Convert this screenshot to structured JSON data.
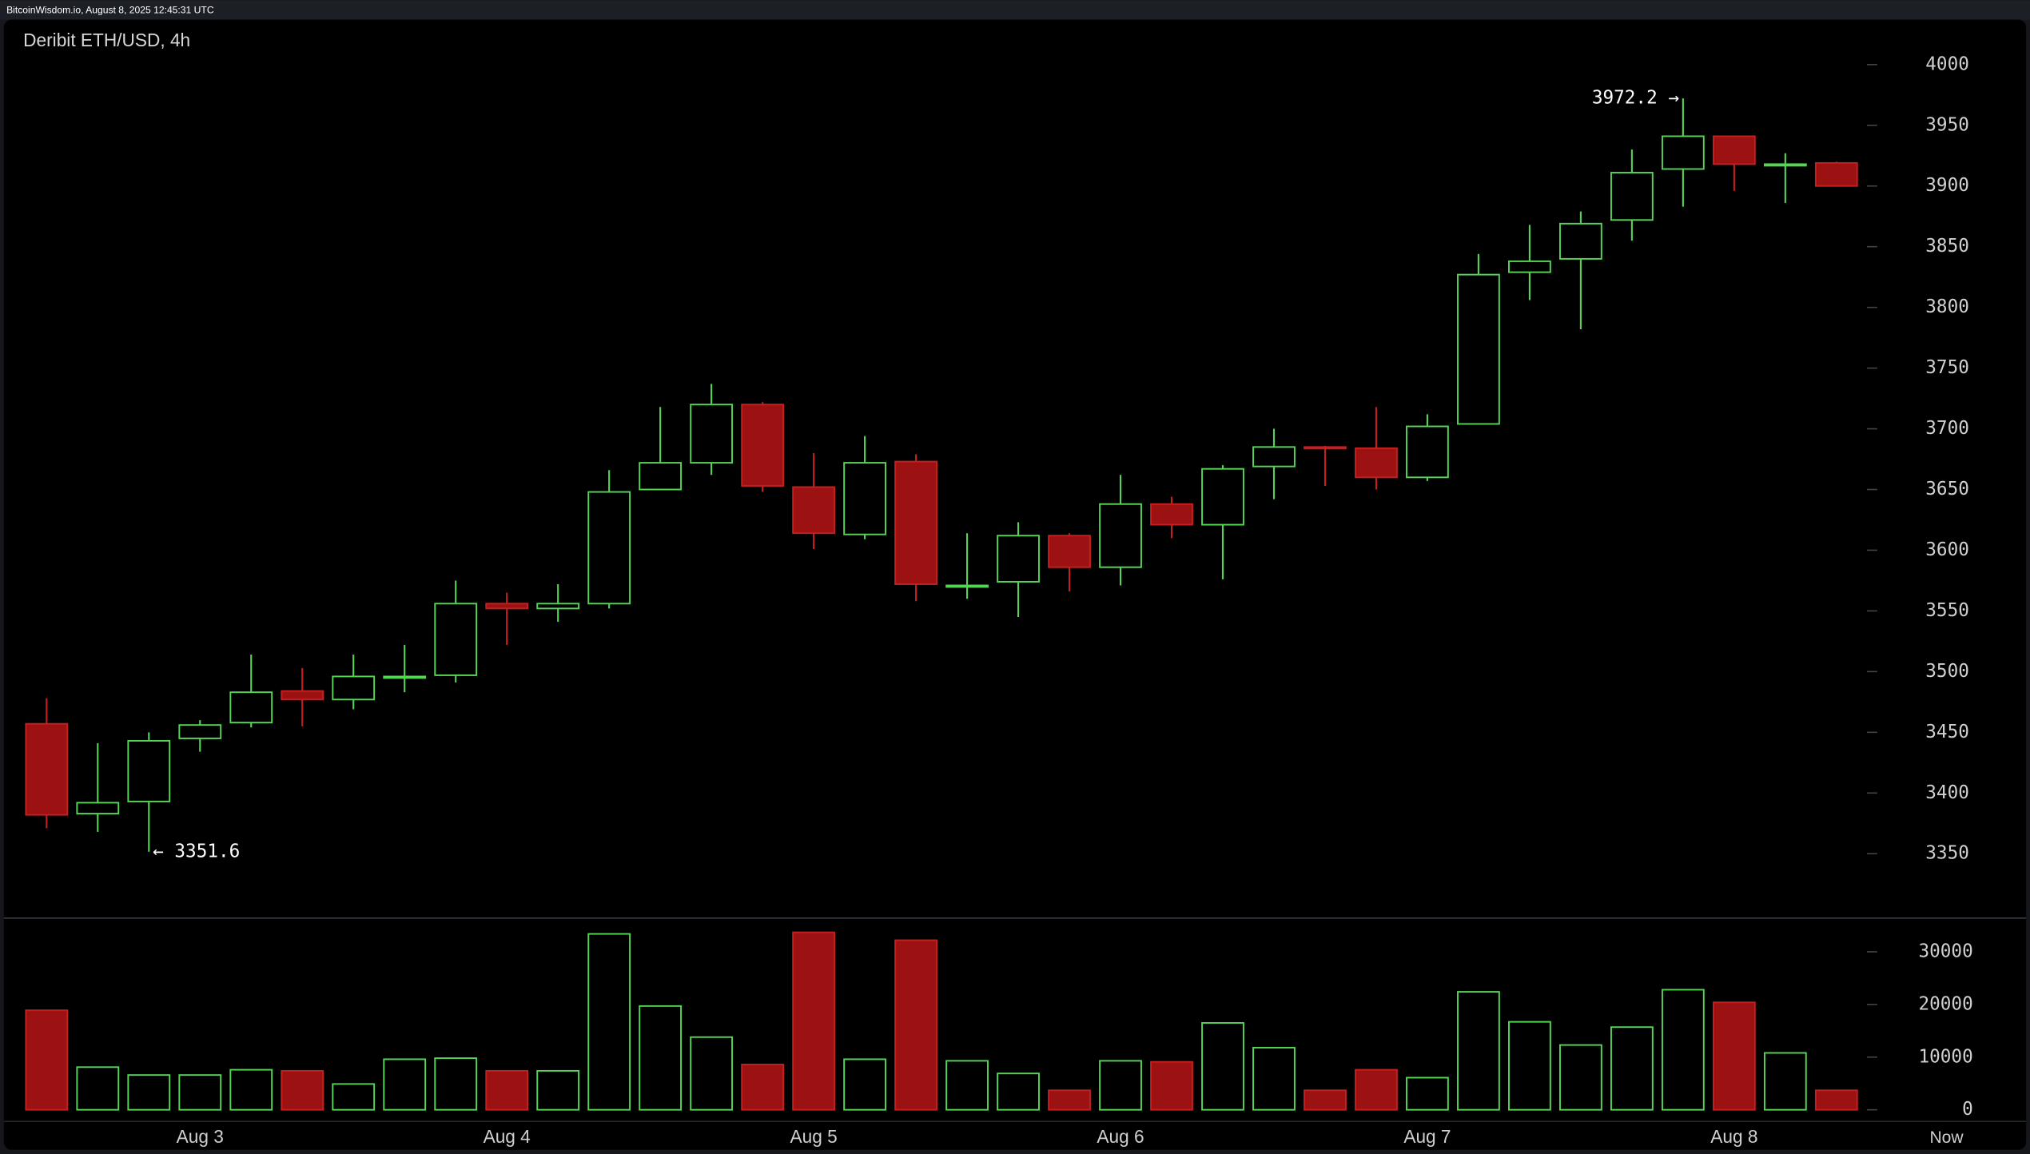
{
  "header": {
    "text": "BitcoinWisdom.io, August 8, 2025 12:45:31 UTC"
  },
  "chart_data": {
    "type": "candlestick",
    "title": "Deribit ETH/USD, 4h",
    "categories": [
      null,
      null,
      null,
      "Aug 3",
      null,
      null,
      null,
      null,
      null,
      "Aug 4",
      null,
      null,
      null,
      null,
      null,
      "Aug 5",
      null,
      null,
      null,
      null,
      null,
      "Aug 6",
      null,
      null,
      null,
      null,
      null,
      "Aug 7",
      null,
      null,
      null,
      null,
      null,
      "Aug 8",
      null,
      null
    ],
    "end_label": "Now",
    "open": [
      3457,
      3383,
      3393,
      3445,
      3458,
      3484,
      3477,
      3495,
      3497,
      3556,
      3552,
      3556,
      3650,
      3672,
      3720,
      3652,
      3613,
      3673,
      3570,
      3574,
      3612,
      3586,
      3638,
      3621,
      3669,
      3685,
      3684,
      3660,
      3704,
      3829,
      3840,
      3872,
      3914,
      3941,
      3917,
      3919
    ],
    "high": [
      3478,
      3441,
      3450,
      3460,
      3514,
      3503,
      3514,
      3522,
      3575,
      3565,
      3572,
      3666,
      3718,
      3737,
      3722,
      3680,
      3694,
      3679,
      3614,
      3623,
      3614,
      3662,
      3644,
      3670,
      3700,
      3686,
      3718,
      3712,
      3844,
      3868,
      3879,
      3930,
      3972.2,
      3941,
      3927,
      3920
    ],
    "low": [
      3371,
      3368,
      3351.6,
      3434,
      3454,
      3455,
      3469,
      3483,
      3491,
      3522,
      3541,
      3552,
      3650,
      3662,
      3648,
      3601,
      3609,
      3558,
      3560,
      3545,
      3566,
      3571,
      3610,
      3576,
      3642,
      3653,
      3650,
      3657,
      3704,
      3806,
      3782,
      3855,
      3883,
      3896,
      3886,
      3900
    ],
    "close": [
      3382,
      3392,
      3443,
      3456,
      3483,
      3477,
      3496,
      3496,
      3556,
      3552,
      3556,
      3648,
      3672,
      3720,
      3653,
      3614,
      3672,
      3572,
      3571,
      3612,
      3586,
      3638,
      3621,
      3667,
      3685,
      3684,
      3660,
      3702,
      3827,
      3838,
      3869,
      3911,
      3941,
      3918,
      3918,
      3900
    ],
    "volume": [
      18900,
      8100,
      6600,
      6600,
      7600,
      7400,
      4900,
      9600,
      9800,
      7400,
      7400,
      33400,
      19700,
      13800,
      8600,
      33700,
      9600,
      32200,
      9300,
      6900,
      3700,
      9300,
      9100,
      16500,
      11800,
      3700,
      7600,
      6100,
      22400,
      16700,
      12300,
      15700,
      22800,
      20400,
      10800,
      3700
    ],
    "up_color": "#55d455",
    "down_color": "#9c1212",
    "ylim": [
      3298,
      4037
    ],
    "yticks": [
      3350,
      3400,
      3450,
      3500,
      3550,
      3600,
      3650,
      3700,
      3750,
      3800,
      3850,
      3900,
      3950,
      4000
    ],
    "volume_ylim": [
      -2200,
      36400
    ],
    "volume_yticks": [
      0,
      10000,
      20000,
      30000
    ],
    "low_label": "← 3351.6",
    "high_label": "3972.2 →"
  }
}
